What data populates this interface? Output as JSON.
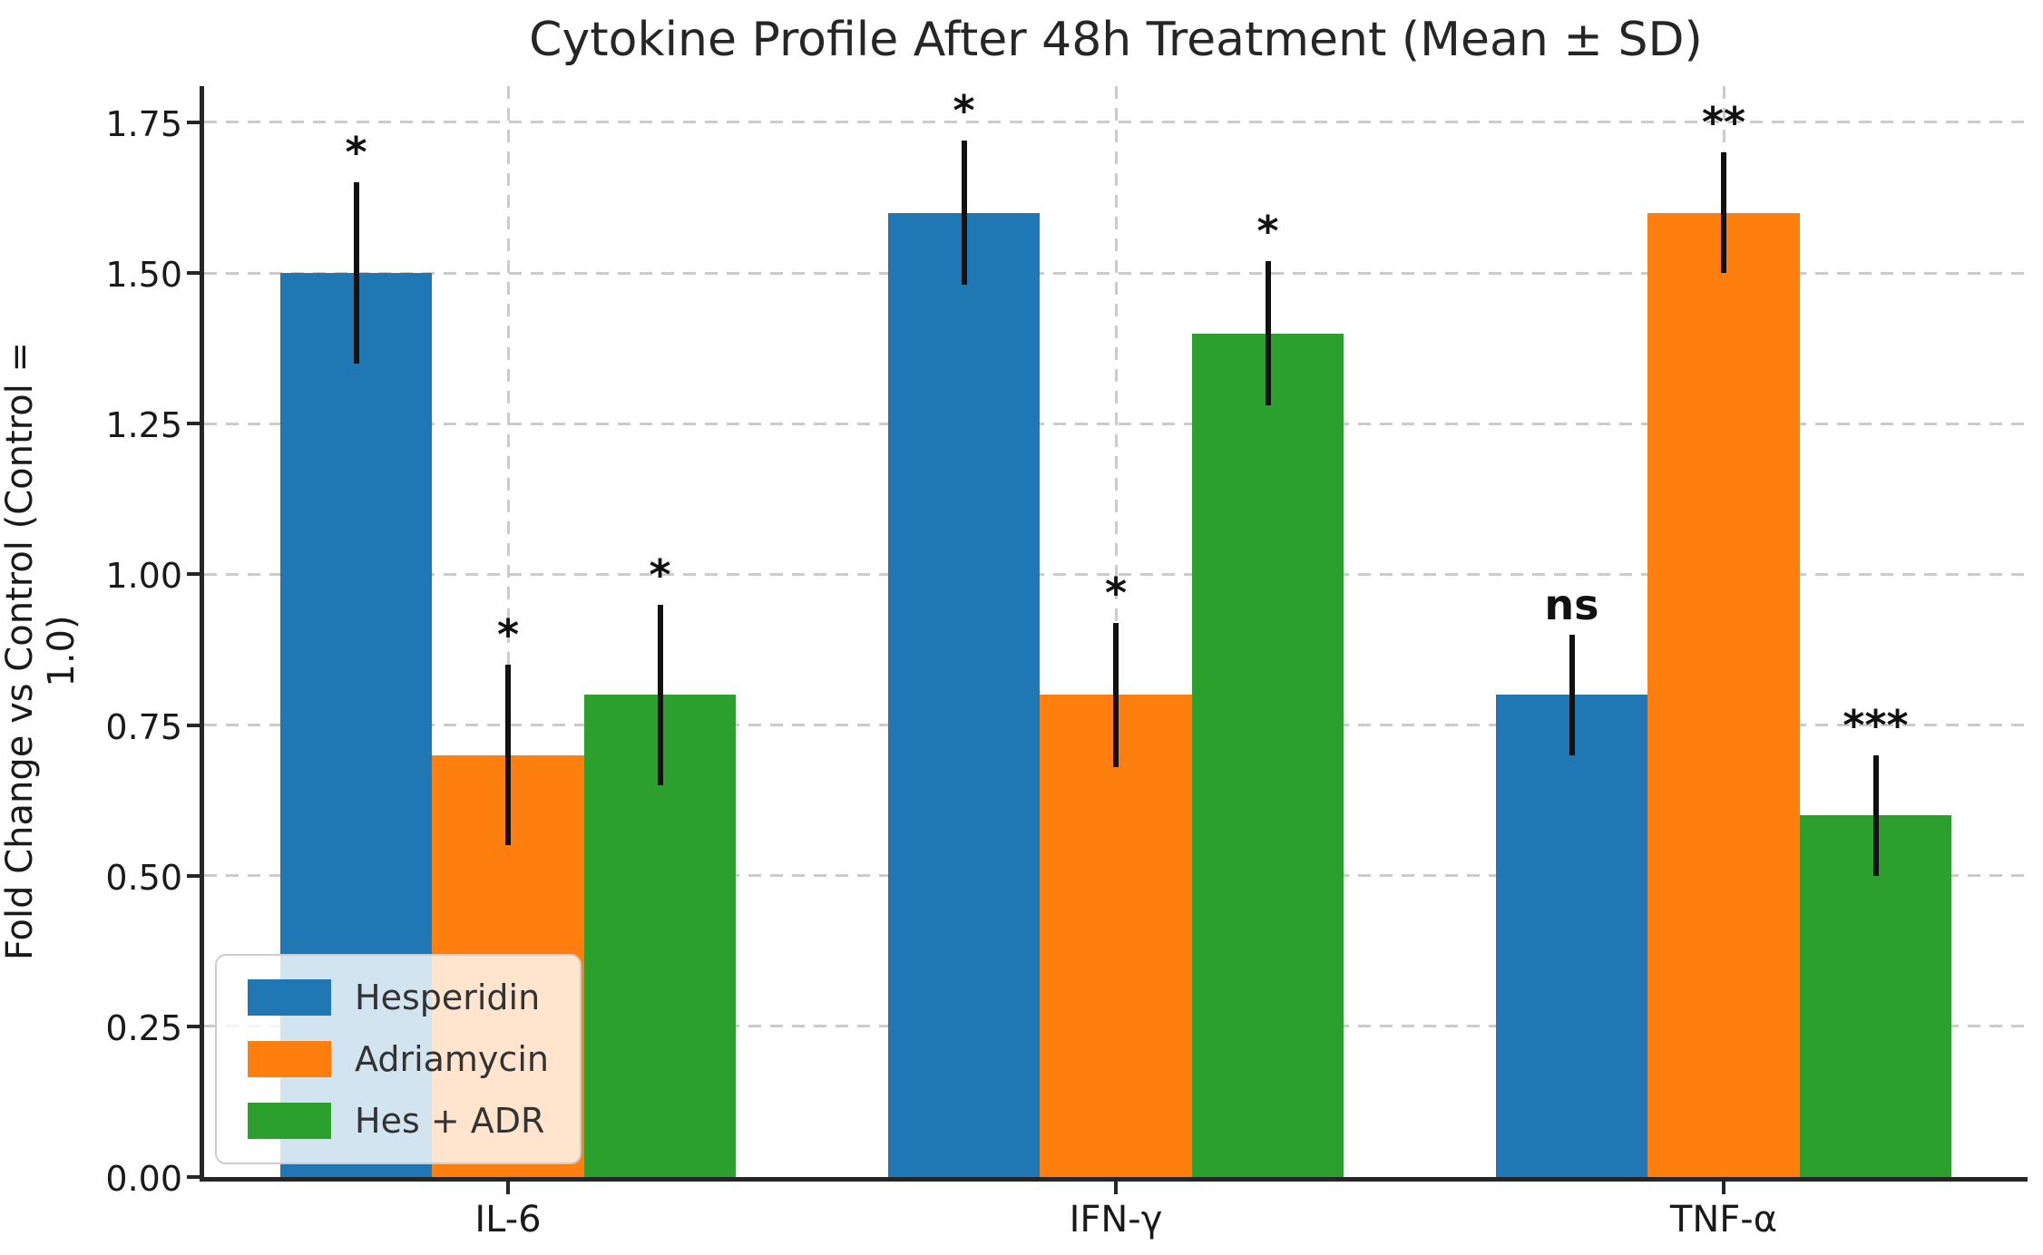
{
  "chart_data": {
    "type": "bar",
    "title": "Cytokine Profile After 48h Treatment (Mean ± SD)",
    "ylabel": "Fold Change vs Control (Control = 1.0)",
    "xlabel": "",
    "categories": [
      "IL-6",
      "IFN-γ",
      "TNF-α"
    ],
    "series": [
      {
        "name": "Hesperidin",
        "color": "#1f77b4",
        "values": [
          1.5,
          1.6,
          0.8
        ],
        "errors": [
          0.15,
          0.12,
          0.1
        ],
        "significance": [
          "*",
          "*",
          "ns"
        ]
      },
      {
        "name": "Adriamycin",
        "color": "#ff7f0e",
        "values": [
          0.7,
          0.8,
          1.6
        ],
        "errors": [
          0.15,
          0.12,
          0.1
        ],
        "significance": [
          "*",
          "*",
          "**"
        ]
      },
      {
        "name": "Hes + ADR",
        "color": "#2ca02c",
        "values": [
          0.8,
          1.4,
          0.6
        ],
        "errors": [
          0.15,
          0.12,
          0.1
        ],
        "significance": [
          "*",
          "*",
          "***"
        ]
      }
    ],
    "yticks": [
      "0.00",
      "0.25",
      "0.50",
      "0.75",
      "1.00",
      "1.25",
      "1.50",
      "1.75"
    ],
    "ylim": [
      0,
      1.81
    ],
    "grid": "dashed, horizontal and vertical",
    "legend_position": "lower left",
    "error_bar_style": "symmetric, no caps",
    "colors": {
      "grid": "#cbcbcb",
      "spine": "#262626",
      "text": "#1a1a1a",
      "error_bar": "#111111",
      "legend_border": "#cccccc"
    }
  }
}
